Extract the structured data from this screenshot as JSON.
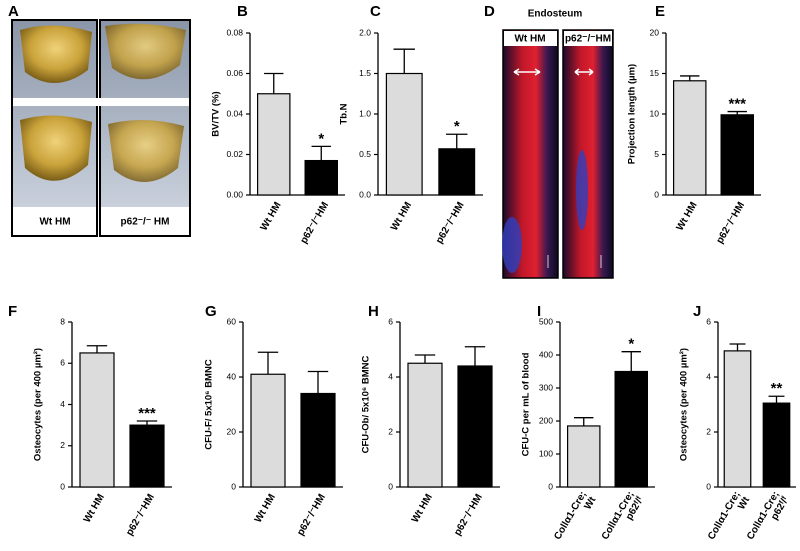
{
  "image_panels": [
    {
      "panel": "A",
      "labels": [
        "Wt HM",
        "p62⁻/⁻ HM"
      ]
    },
    {
      "panel": "D",
      "title": "Endosteum",
      "labels": [
        "Wt  HM",
        "p62⁻/⁻HM"
      ]
    }
  ],
  "chart_data": [
    {
      "type": "bar",
      "panel": "B",
      "y_label": "BV/TV (%)",
      "categories": [
        "Wt HM",
        "p62⁻/⁻HM"
      ],
      "values": [
        0.05,
        0.017
      ],
      "errors": [
        0.01,
        0.007
      ],
      "colors": [
        "#dcdcdc",
        "#000000"
      ],
      "annotation": "*",
      "ylim": [
        0,
        0.08
      ],
      "yticks": [
        {
          "value": 0,
          "label": "0.00"
        },
        {
          "value": 0.02,
          "label": "0.02"
        },
        {
          "value": 0.04,
          "label": "0.04"
        },
        {
          "value": 0.06,
          "label": "0.06"
        },
        {
          "value": 0.08,
          "label": "0.08"
        }
      ]
    },
    {
      "type": "bar",
      "panel": "C",
      "y_label": "Tb.N",
      "categories": [
        "Wt HM",
        "p62⁻/⁻HM"
      ],
      "values": [
        1.5,
        0.57
      ],
      "errors": [
        0.3,
        0.18
      ],
      "colors": [
        "#dcdcdc",
        "#000000"
      ],
      "annotation": "*",
      "ylim": [
        0,
        2
      ],
      "yticks": [
        {
          "value": 0,
          "label": "0.0"
        },
        {
          "value": 0.5,
          "label": "0.5"
        },
        {
          "value": 1,
          "label": "1.0"
        },
        {
          "value": 1.5,
          "label": "1.5"
        },
        {
          "value": 2,
          "label": "2.0"
        }
      ]
    },
    {
      "type": "bar",
      "panel": "E",
      "y_label": "Projection length (µm)",
      "categories": [
        "Wt HM",
        "p62⁻/⁻HM"
      ],
      "values": [
        14.1,
        9.9
      ],
      "errors": [
        0.6,
        0.4
      ],
      "colors": [
        "#dcdcdc",
        "#000000"
      ],
      "annotation": "***",
      "ylim": [
        0,
        20
      ],
      "yticks": [
        0,
        5,
        10,
        15,
        20
      ]
    },
    {
      "type": "bar",
      "panel": "F",
      "y_label": "Osteocytes (per 400 µm²)",
      "categories": [
        "Wt HM",
        "p62⁻/⁻HM"
      ],
      "values": [
        6.5,
        3.0
      ],
      "errors": [
        0.35,
        0.2
      ],
      "colors": [
        "#dcdcdc",
        "#000000"
      ],
      "annotation": "***",
      "ylim": [
        0,
        8
      ],
      "yticks": [
        0,
        2,
        4,
        6,
        8
      ]
    },
    {
      "type": "bar",
      "panel": "G",
      "y_label": "CFU-F/ 5x10⁶ BMNC",
      "categories": [
        "Wt HM",
        "p62⁻/⁻HM"
      ],
      "values": [
        41,
        34
      ],
      "errors": [
        8,
        8
      ],
      "colors": [
        "#dcdcdc",
        "#000000"
      ],
      "ylim": [
        0,
        60
      ],
      "yticks": [
        0,
        20,
        40,
        60
      ]
    },
    {
      "type": "bar",
      "panel": "H",
      "y_label": "CFU-Ob/ 5x10⁶ BMNC",
      "categories": [
        "Wt HM",
        "p62⁻/⁻HM"
      ],
      "values": [
        4.5,
        4.4
      ],
      "errors": [
        0.3,
        0.7
      ],
      "colors": [
        "#dcdcdc",
        "#000000"
      ],
      "ylim": [
        0,
        6
      ],
      "yticks": [
        0,
        2,
        4,
        6
      ]
    },
    {
      "type": "bar",
      "panel": "I",
      "y_label": "CFU-C per mL of blood",
      "categories": [
        [
          "Collα1-Cre;",
          "Wt"
        ],
        [
          "Collα1-Cre;",
          "p62ᶠ/ᶠ"
        ]
      ],
      "values": [
        185,
        350
      ],
      "errors": [
        25,
        60
      ],
      "colors": [
        "#dcdcdc",
        "#000000"
      ],
      "annotation": "*",
      "ylim": [
        0,
        500
      ],
      "yticks": [
        0,
        100,
        200,
        300,
        400,
        500
      ]
    },
    {
      "type": "bar",
      "panel": "J",
      "y_label": "Osteocytes (per 400 µm²)",
      "categories": [
        [
          "Collα1-Cre;",
          "Wt"
        ],
        [
          "Collα1-Cre;",
          "p62ᶠ/ᶠ"
        ]
      ],
      "values": [
        4.95,
        3.05
      ],
      "errors": [
        0.25,
        0.25
      ],
      "colors": [
        "#dcdcdc",
        "#000000"
      ],
      "annotation": "**",
      "ylim": [
        0,
        6
      ],
      "yticks": [
        0,
        2,
        4,
        6
      ]
    }
  ]
}
